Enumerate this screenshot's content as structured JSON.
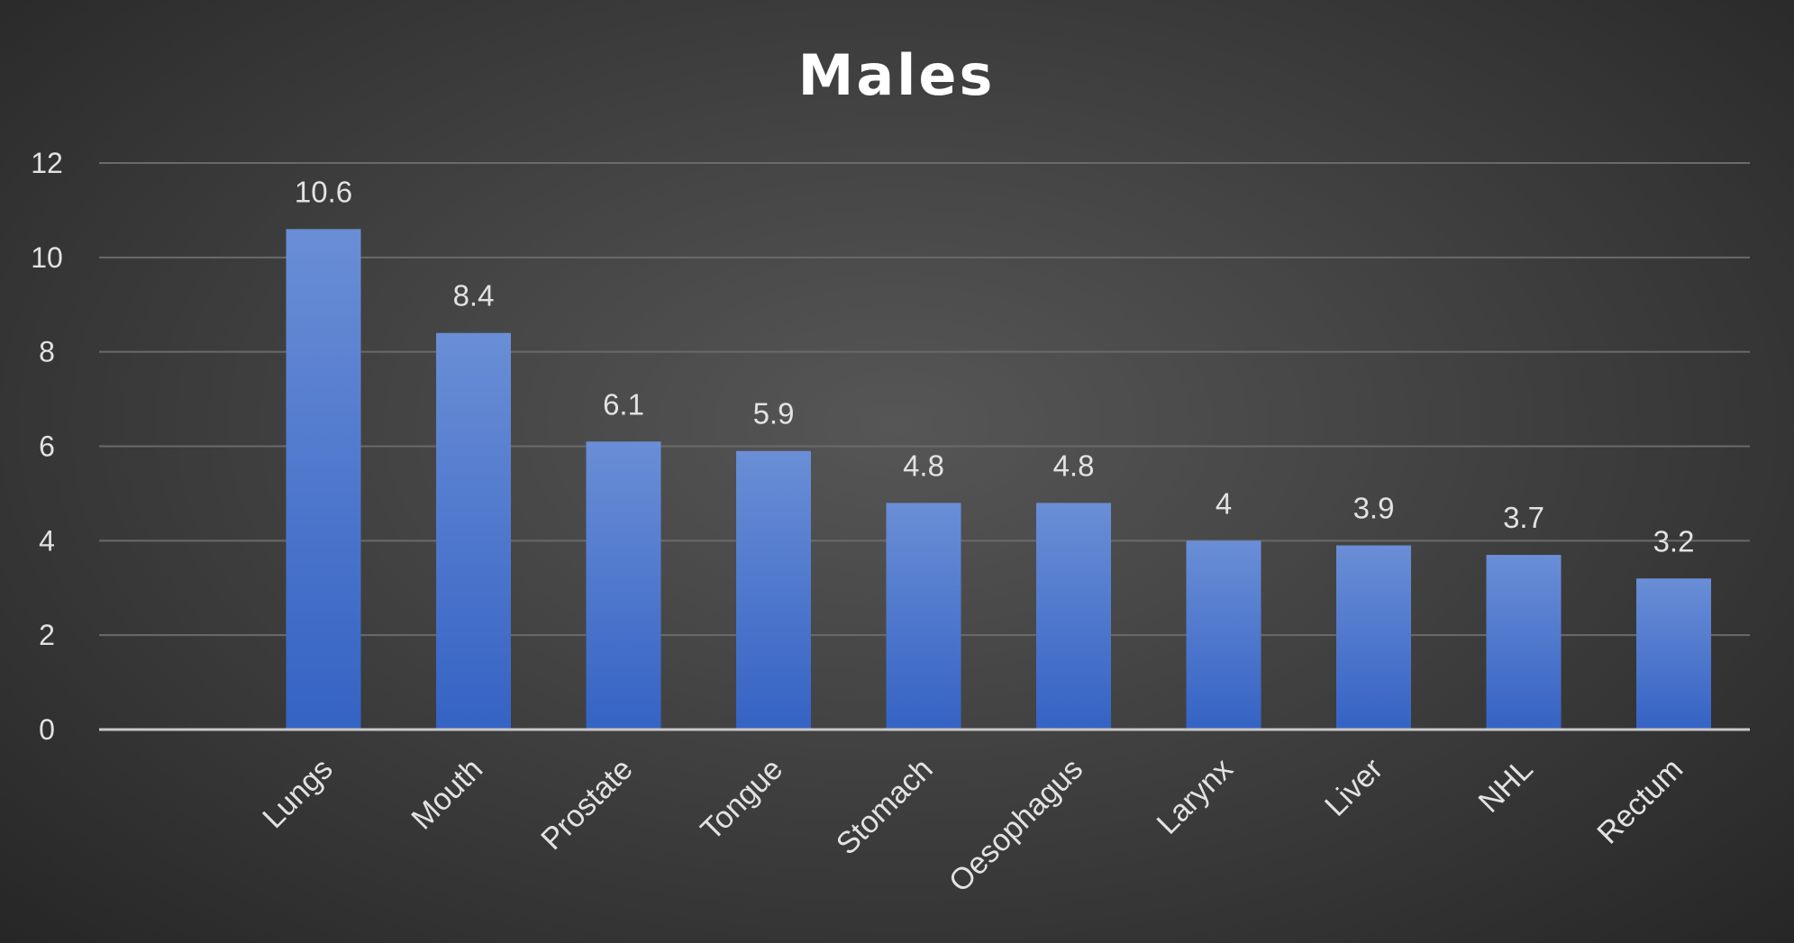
{
  "chart_data": {
    "type": "bar",
    "title": "Males",
    "categories": [
      "Lungs",
      "Mouth",
      "Prostate",
      "Tongue",
      "Stomach",
      "Oesophagus",
      "Larynx",
      "Liver",
      "NHL",
      "Rectum"
    ],
    "values": [
      10.6,
      8.4,
      6.1,
      5.9,
      4.8,
      4.8,
      4,
      3.9,
      3.7,
      3.2
    ],
    "data_labels": [
      "10.6",
      "8.4",
      "6.1",
      "5.9",
      "4.8",
      "4.8",
      "4",
      "3.9",
      "3.7",
      "3.2"
    ],
    "yticks": [
      "0",
      "2",
      "4",
      "6",
      "8",
      "10",
      "12"
    ],
    "ylim": [
      0,
      12
    ],
    "xlabel": "",
    "ylabel": "",
    "grid": true,
    "legend": "none",
    "bar_color": "#4a72c8",
    "bar_color_light": "#6a8ed6",
    "bar_color_dark": "#3563c4"
  }
}
